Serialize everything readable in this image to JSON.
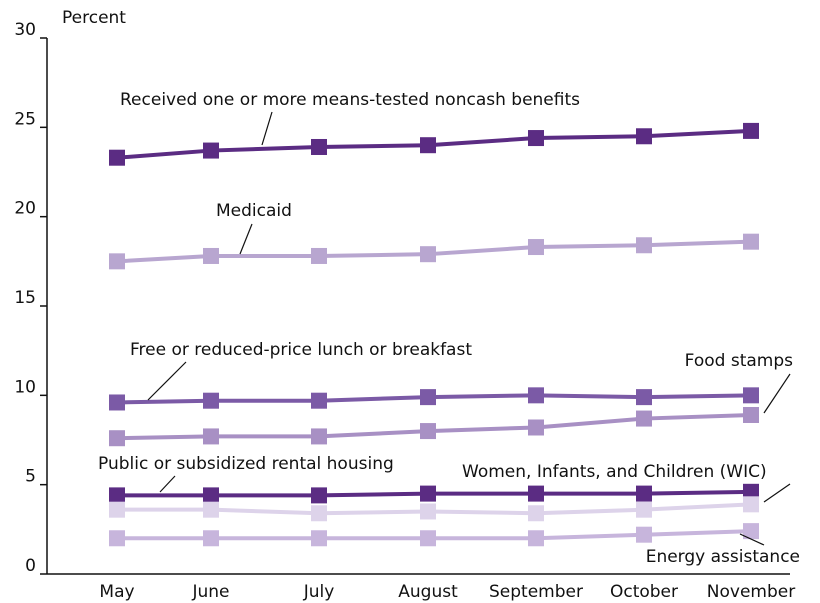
{
  "chart_data": {
    "type": "line",
    "y_label": "Percent",
    "categories": [
      "May",
      "June",
      "July",
      "August",
      "September",
      "October",
      "November"
    ],
    "ylim": [
      0,
      30
    ],
    "yticks": [
      0,
      5,
      10,
      15,
      20,
      25,
      30
    ],
    "series": [
      {
        "name": "Received one or more means-tested noncash benefits",
        "color": "#5b2c83",
        "values": [
          23.3,
          23.7,
          23.9,
          24.0,
          24.4,
          24.5,
          24.8
        ]
      },
      {
        "name": "Medicaid",
        "color": "#b8a6d0",
        "values": [
          17.5,
          17.8,
          17.8,
          17.9,
          18.3,
          18.4,
          18.6
        ]
      },
      {
        "name": "Free or reduced-price lunch or breakfast",
        "color": "#7b5aa6",
        "values": [
          9.6,
          9.7,
          9.7,
          9.9,
          10.0,
          9.9,
          10.0
        ]
      },
      {
        "name": "Food stamps",
        "color": "#a890c4",
        "values": [
          7.6,
          7.7,
          7.7,
          8.0,
          8.2,
          8.7,
          8.9
        ]
      },
      {
        "name": "Public or subsidized rental housing",
        "color": "#5b2c83",
        "values": [
          4.4,
          4.4,
          4.4,
          4.5,
          4.5,
          4.5,
          4.6
        ]
      },
      {
        "name": "Women, Infants, and Children (WIC)",
        "color": "#ddd3ea",
        "values": [
          3.6,
          3.6,
          3.4,
          3.5,
          3.4,
          3.6,
          3.9
        ]
      },
      {
        "name": "Energy assistance",
        "color": "#c7b5dc",
        "values": [
          2.0,
          2.0,
          2.0,
          2.0,
          2.0,
          2.2,
          2.4
        ]
      }
    ]
  }
}
